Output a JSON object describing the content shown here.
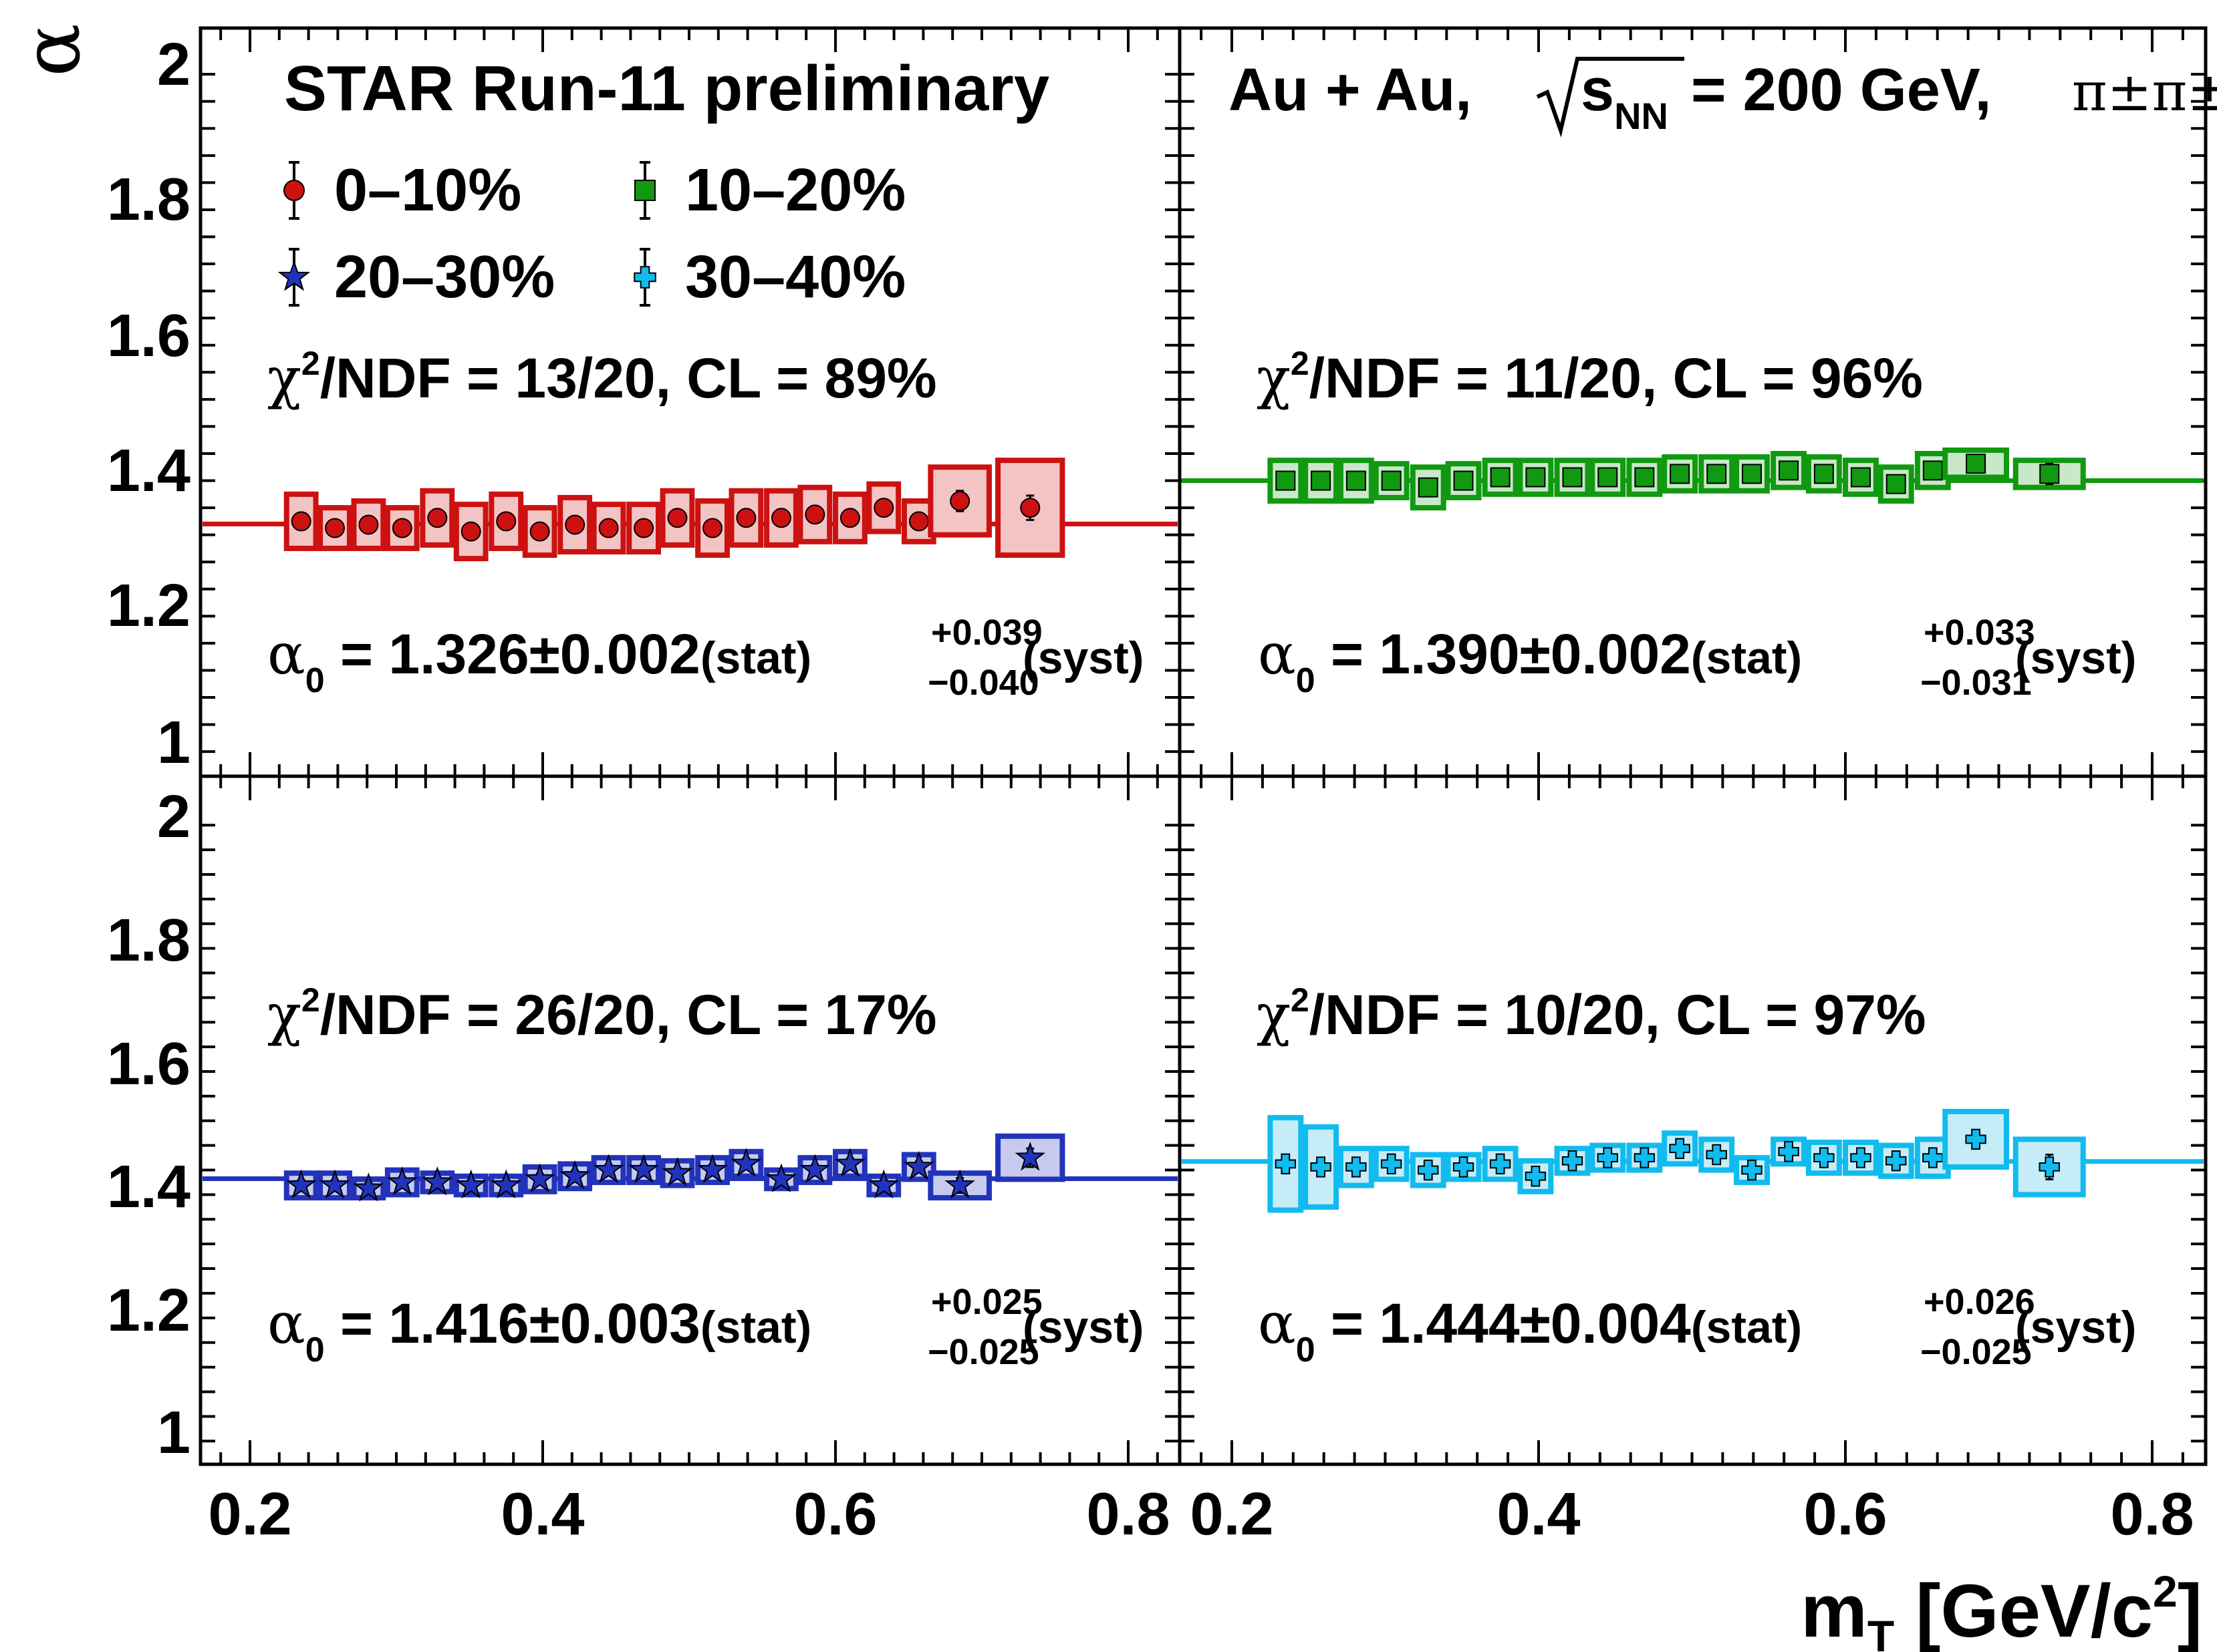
{
  "figure": {
    "x_axis_label": "m",
    "x_axis_label_sub": "T",
    "x_axis_unit": "[GeV/c",
    "x_axis_unit_sup": "2",
    "x_axis_unit_close": "]",
    "y_axis_label": "α",
    "x_tick_labels": [
      "0.2",
      "0.4",
      "0.6",
      "0.8"
    ],
    "y_tick_labels": [
      "1",
      "1.2",
      "1.4",
      "1.6",
      "1.8",
      "2"
    ],
    "header_left": "STAR Run-11 preliminary",
    "header_right_prefix": "Au + Au,",
    "header_right_s": "s",
    "header_right_sub": "NN",
    "header_right_suffix": "= 200 GeV,",
    "header_right_pions": "π±π±"
  },
  "legend": [
    {
      "label": "0–10%",
      "marker": "circle",
      "color": "#cc1111"
    },
    {
      "label": "10–20%",
      "marker": "square",
      "color": "#119911"
    },
    {
      "label": "20–30%",
      "marker": "star",
      "color": "#2233bb"
    },
    {
      "label": "30–40%",
      "marker": "cross",
      "color": "#11bbee"
    }
  ],
  "panels": [
    {
      "chi2_prefix": "χ",
      "chi2_text": "/NDF = 13/20, CL = 89%",
      "alpha0_sym": "α",
      "alpha0_sub": "0",
      "alpha0_main": " = 1.326±0.002",
      "alpha0_stat": "(stat)",
      "alpha0_up": "+0.039",
      "alpha0_down": "−0.040",
      "alpha0_syst": "(syst)"
    },
    {
      "chi2_prefix": "χ",
      "chi2_text": "/NDF = 11/20, CL = 96%",
      "alpha0_sym": "α",
      "alpha0_sub": "0",
      "alpha0_main": " = 1.390±0.002",
      "alpha0_stat": "(stat)",
      "alpha0_up": "+0.033",
      "alpha0_down": "−0.031",
      "alpha0_syst": "(syst)"
    },
    {
      "chi2_prefix": "χ",
      "chi2_text": "/NDF = 26/20, CL = 17%",
      "alpha0_sym": "α",
      "alpha0_sub": "0",
      "alpha0_main": " = 1.416±0.003",
      "alpha0_stat": "(stat)",
      "alpha0_up": "+0.025",
      "alpha0_down": "−0.025",
      "alpha0_syst": "(syst)"
    },
    {
      "chi2_prefix": "χ",
      "chi2_text": "/NDF = 10/20, CL = 97%",
      "alpha0_sym": "α",
      "alpha0_sub": "0",
      "alpha0_main": " = 1.444±0.004",
      "alpha0_stat": "(stat)",
      "alpha0_up": "+0.026",
      "alpha0_down": "−0.025",
      "alpha0_syst": "(syst)"
    }
  ],
  "chart_data": [
    {
      "type": "scatter",
      "name": "0–10%",
      "color": "#cc1111",
      "fill": "#f2c4c4",
      "marker": "circle",
      "xlabel": "m_T [GeV/c^2]",
      "ylabel": "α",
      "xlim": [
        0.17,
        0.84
      ],
      "ylim": [
        0.93,
        2.05
      ],
      "fit_value": 1.326,
      "x": [
        0.235,
        0.258,
        0.281,
        0.304,
        0.328,
        0.351,
        0.375,
        0.398,
        0.422,
        0.445,
        0.469,
        0.492,
        0.516,
        0.539,
        0.563,
        0.586,
        0.61,
        0.633,
        0.657,
        0.685,
        0.733
      ],
      "y": [
        1.33,
        1.32,
        1.325,
        1.32,
        1.335,
        1.315,
        1.33,
        1.315,
        1.325,
        1.32,
        1.32,
        1.335,
        1.32,
        1.335,
        1.335,
        1.34,
        1.335,
        1.35,
        1.33,
        1.36,
        1.35
      ],
      "stat_err": [
        0.006,
        0.006,
        0.006,
        0.006,
        0.006,
        0.006,
        0.006,
        0.006,
        0.006,
        0.006,
        0.006,
        0.006,
        0.006,
        0.006,
        0.006,
        0.006,
        0.006,
        0.007,
        0.008,
        0.015,
        0.018
      ],
      "syst_err": [
        0.04,
        0.03,
        0.035,
        0.03,
        0.04,
        0.04,
        0.04,
        0.035,
        0.04,
        0.035,
        0.035,
        0.04,
        0.04,
        0.04,
        0.04,
        0.04,
        0.035,
        0.035,
        0.03,
        0.05,
        0.07
      ],
      "box_halfwidth": [
        0.01,
        0.01,
        0.01,
        0.01,
        0.01,
        0.01,
        0.01,
        0.01,
        0.01,
        0.01,
        0.01,
        0.01,
        0.01,
        0.01,
        0.01,
        0.01,
        0.01,
        0.01,
        0.01,
        0.02,
        0.022
      ]
    },
    {
      "type": "scatter",
      "name": "10–20%",
      "color": "#119911",
      "fill": "#c8e8c8",
      "marker": "square",
      "xlabel": "m_T [GeV/c^2]",
      "ylabel": "α",
      "xlim": [
        0.17,
        0.84
      ],
      "ylim": [
        0.93,
        2.05
      ],
      "fit_value": 1.39,
      "x": [
        0.235,
        0.258,
        0.281,
        0.304,
        0.328,
        0.351,
        0.375,
        0.398,
        0.422,
        0.445,
        0.469,
        0.492,
        0.516,
        0.539,
        0.563,
        0.586,
        0.61,
        0.633,
        0.657,
        0.685,
        0.733
      ],
      "y": [
        1.39,
        1.39,
        1.39,
        1.39,
        1.38,
        1.39,
        1.395,
        1.395,
        1.395,
        1.395,
        1.395,
        1.4,
        1.4,
        1.4,
        1.405,
        1.4,
        1.395,
        1.385,
        1.405,
        1.415,
        1.4
      ],
      "stat_err": [
        0.006,
        0.006,
        0.006,
        0.006,
        0.006,
        0.006,
        0.006,
        0.006,
        0.006,
        0.006,
        0.006,
        0.006,
        0.006,
        0.006,
        0.006,
        0.006,
        0.006,
        0.007,
        0.008,
        0.012,
        0.015
      ],
      "syst_err": [
        0.03,
        0.03,
        0.03,
        0.025,
        0.03,
        0.025,
        0.025,
        0.025,
        0.025,
        0.025,
        0.025,
        0.025,
        0.025,
        0.025,
        0.025,
        0.025,
        0.025,
        0.025,
        0.025,
        0.02,
        0.02
      ],
      "box_halfwidth": [
        0.01,
        0.01,
        0.01,
        0.01,
        0.01,
        0.01,
        0.01,
        0.01,
        0.01,
        0.01,
        0.01,
        0.01,
        0.01,
        0.01,
        0.01,
        0.01,
        0.01,
        0.01,
        0.01,
        0.02,
        0.022
      ]
    },
    {
      "type": "scatter",
      "name": "20–30%",
      "color": "#2233bb",
      "fill": "#c6cbee",
      "marker": "star",
      "xlabel": "m_T [GeV/c^2]",
      "ylabel": "α",
      "xlim": [
        0.17,
        0.84
      ],
      "ylim": [
        0.93,
        2.05
      ],
      "fit_value": 1.416,
      "x": [
        0.235,
        0.258,
        0.281,
        0.304,
        0.328,
        0.351,
        0.375,
        0.398,
        0.422,
        0.445,
        0.469,
        0.492,
        0.516,
        0.539,
        0.563,
        0.586,
        0.61,
        0.633,
        0.657,
        0.685,
        0.733
      ],
      "y": [
        1.405,
        1.405,
        1.4,
        1.41,
        1.41,
        1.405,
        1.405,
        1.415,
        1.42,
        1.43,
        1.43,
        1.425,
        1.43,
        1.44,
        1.415,
        1.43,
        1.44,
        1.405,
        1.435,
        1.405,
        1.45
      ],
      "stat_err": [
        0.006,
        0.006,
        0.006,
        0.006,
        0.006,
        0.006,
        0.006,
        0.006,
        0.006,
        0.006,
        0.006,
        0.006,
        0.006,
        0.006,
        0.006,
        0.006,
        0.006,
        0.007,
        0.008,
        0.012,
        0.015
      ],
      "syst_err": [
        0.02,
        0.02,
        0.015,
        0.02,
        0.015,
        0.015,
        0.015,
        0.02,
        0.02,
        0.02,
        0.02,
        0.02,
        0.02,
        0.02,
        0.015,
        0.02,
        0.02,
        0.015,
        0.02,
        0.02,
        0.035
      ],
      "box_halfwidth": [
        0.01,
        0.01,
        0.01,
        0.01,
        0.01,
        0.01,
        0.01,
        0.01,
        0.01,
        0.01,
        0.01,
        0.01,
        0.01,
        0.01,
        0.01,
        0.01,
        0.01,
        0.01,
        0.01,
        0.02,
        0.022
      ]
    },
    {
      "type": "scatter",
      "name": "30–40%",
      "color": "#11bbee",
      "fill": "#c6ecf8",
      "marker": "cross",
      "xlabel": "m_T [GeV/c^2]",
      "ylabel": "α",
      "xlim": [
        0.17,
        0.84
      ],
      "ylim": [
        0.93,
        2.05
      ],
      "fit_value": 1.444,
      "x": [
        0.235,
        0.258,
        0.281,
        0.304,
        0.328,
        0.351,
        0.375,
        0.398,
        0.422,
        0.445,
        0.469,
        0.492,
        0.516,
        0.539,
        0.563,
        0.586,
        0.61,
        0.633,
        0.657,
        0.685,
        0.733
      ],
      "y": [
        1.44,
        1.435,
        1.435,
        1.44,
        1.43,
        1.435,
        1.44,
        1.42,
        1.445,
        1.45,
        1.45,
        1.465,
        1.455,
        1.43,
        1.46,
        1.45,
        1.45,
        1.445,
        1.45,
        1.48,
        1.435
      ],
      "stat_err": [
        0.015,
        0.015,
        0.012,
        0.012,
        0.012,
        0.012,
        0.012,
        0.012,
        0.012,
        0.012,
        0.012,
        0.012,
        0.012,
        0.012,
        0.012,
        0.012,
        0.012,
        0.012,
        0.015,
        0.015,
        0.02
      ],
      "syst_err": [
        0.075,
        0.065,
        0.03,
        0.025,
        0.025,
        0.02,
        0.025,
        0.025,
        0.02,
        0.02,
        0.02,
        0.025,
        0.025,
        0.02,
        0.02,
        0.025,
        0.025,
        0.025,
        0.03,
        0.045,
        0.045
      ],
      "box_halfwidth": [
        0.01,
        0.01,
        0.01,
        0.01,
        0.01,
        0.01,
        0.01,
        0.01,
        0.01,
        0.01,
        0.01,
        0.01,
        0.01,
        0.01,
        0.01,
        0.01,
        0.01,
        0.01,
        0.01,
        0.02,
        0.022
      ]
    }
  ]
}
